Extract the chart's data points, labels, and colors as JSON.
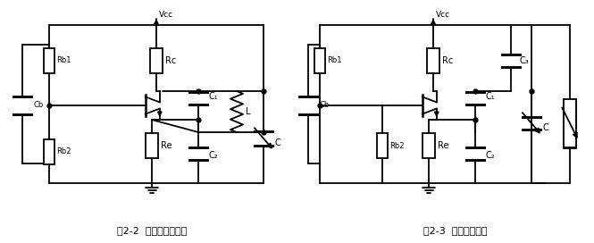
{
  "title1": "图2-2  克拉泼振荡电路",
  "title2": "图2-3  西勒振荡电路",
  "vcc": "Vcc",
  "bg": "#ffffff",
  "lc": "#000000",
  "lw": 1.3,
  "fs": 7,
  "fs_title": 8
}
